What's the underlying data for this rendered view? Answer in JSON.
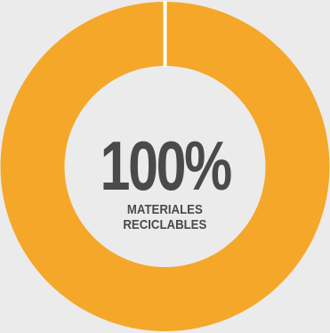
{
  "chart_data": {
    "type": "pie",
    "variant": "donut",
    "slices": [
      {
        "label": "MATERIALES RECICLABLES",
        "value": 100,
        "color": "#f5a72a"
      }
    ],
    "center_value": "100%",
    "center_caption": [
      "MATERIALES",
      "RECICLABLES"
    ]
  },
  "colors": {
    "ring": "#f5a72a",
    "background": "#ebebeb",
    "text": "#4a4a4a",
    "separator": "#ffffff"
  }
}
